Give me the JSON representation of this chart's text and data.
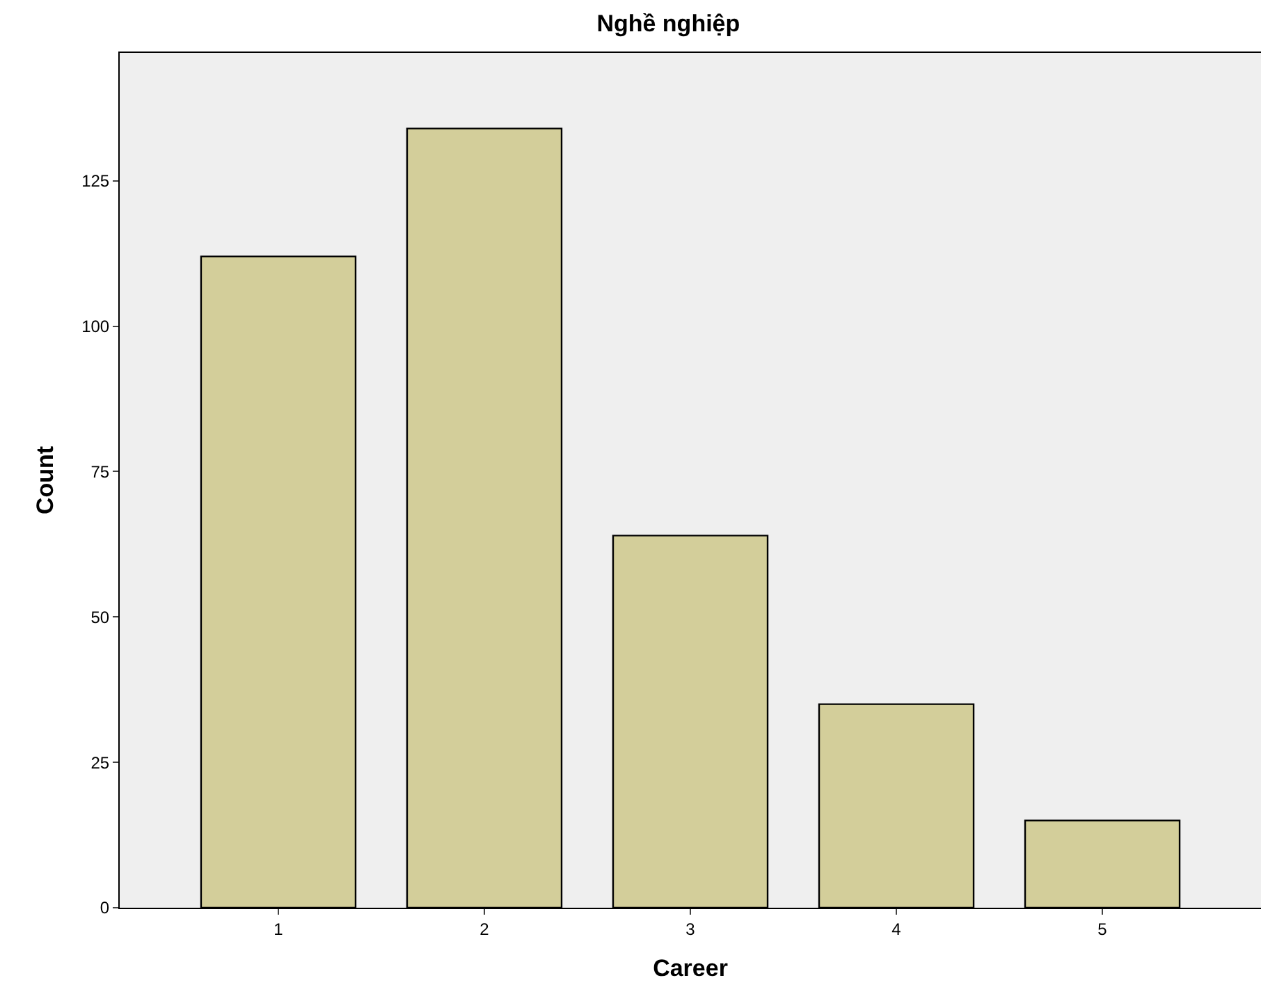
{
  "chart_data": {
    "type": "bar",
    "title": "Nghề nghiệp",
    "xlabel": "Career",
    "ylabel": "Count",
    "categories": [
      "1",
      "2",
      "3",
      "4",
      "5"
    ],
    "values": [
      112,
      134,
      64,
      35,
      15
    ],
    "color": "#d3ce9a",
    "ylim": [
      0,
      147
    ],
    "yticks": [
      0,
      25,
      50,
      75,
      100,
      125
    ],
    "grid": false
  }
}
